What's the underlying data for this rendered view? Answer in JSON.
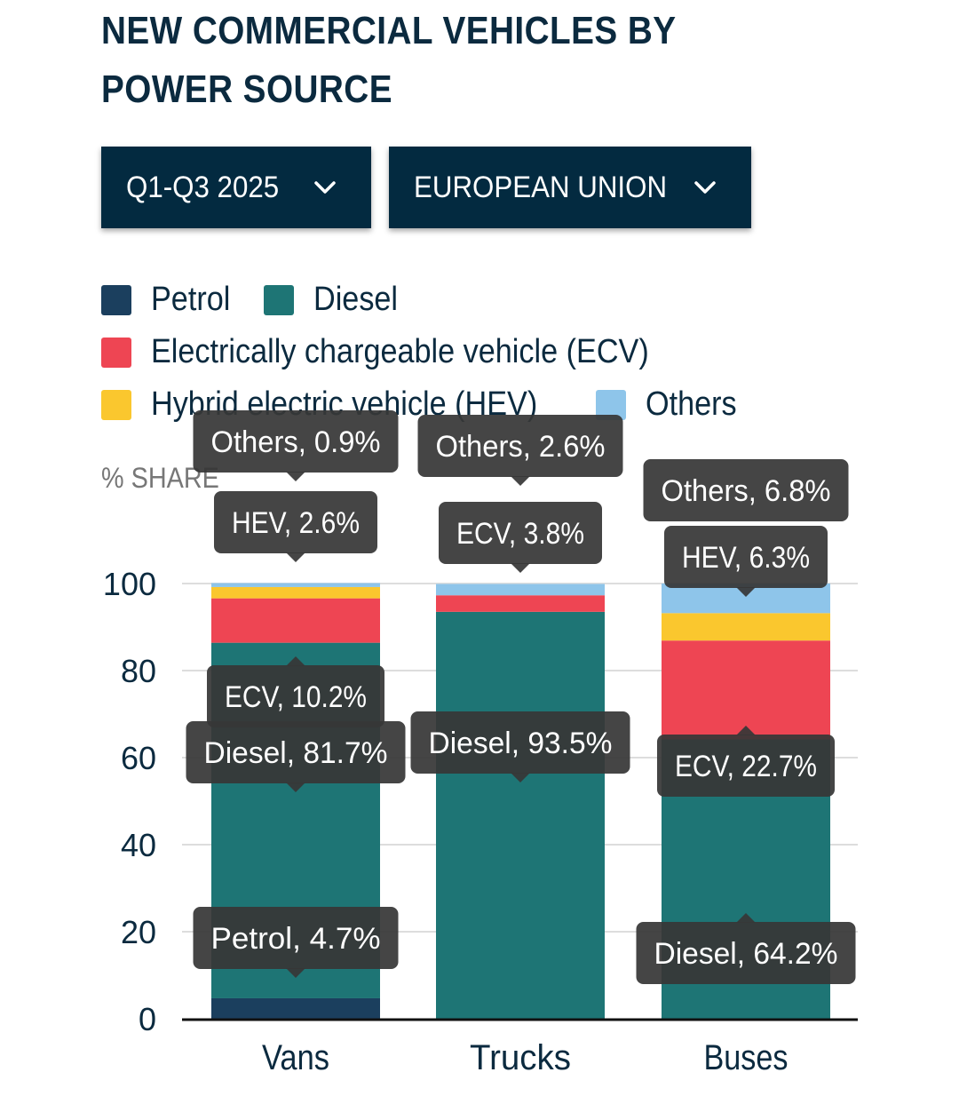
{
  "title": "NEW COMMERCIAL VEHICLES BY POWER SOURCE",
  "filters": {
    "period": "Q1-Q3 2025",
    "region": "EUROPEAN UNION"
  },
  "legend": [
    {
      "label": "Petrol",
      "color": "#1b3f5e"
    },
    {
      "label": "Diesel",
      "color": "#1e7575"
    },
    {
      "label": "Electrically chargeable vehicle (ECV)",
      "color": "#ee4553"
    },
    {
      "label": "Hybrid electric vehicle (HEV)",
      "color": "#fac72e"
    },
    {
      "label": "Others",
      "color": "#8ec5ea"
    }
  ],
  "axis_unit": "% SHARE",
  "chart_data": {
    "type": "bar",
    "stacked": true,
    "ylabel": "% SHARE",
    "ylim": [
      0,
      100
    ],
    "yticks": [
      "0",
      "20",
      "40",
      "60",
      "80",
      "100"
    ],
    "grid": true,
    "legend_position": "top",
    "categories": [
      "Vans",
      "Trucks",
      "Buses"
    ],
    "series": [
      {
        "name": "Petrol",
        "short": "Petrol",
        "color": "#1b3f5e",
        "values": [
          4.7,
          0,
          0
        ]
      },
      {
        "name": "Diesel",
        "short": "Diesel",
        "color": "#1e7575",
        "values": [
          81.7,
          93.5,
          64.2
        ]
      },
      {
        "name": "Electrically chargeable vehicle (ECV)",
        "short": "ECV",
        "color": "#ee4553",
        "values": [
          10.2,
          3.8,
          22.7
        ]
      },
      {
        "name": "Hybrid electric vehicle (HEV)",
        "short": "HEV",
        "color": "#fac72e",
        "values": [
          2.6,
          0,
          6.3
        ]
      },
      {
        "name": "Others",
        "short": "Others",
        "color": "#8ec5ea",
        "values": [
          0.9,
          2.6,
          6.8
        ]
      }
    ],
    "tooltips": [
      "Others, 0.9%",
      "HEV, 2.6%",
      "ECV, 10.2%",
      "Diesel, 81.7%",
      "Petrol, 4.7%",
      "Others, 2.6%",
      "ECV, 3.8%",
      "Diesel, 93.5%",
      "Others, 6.8%",
      "HEV, 6.3%",
      "ECV, 22.7%",
      "Diesel, 64.2%"
    ]
  }
}
